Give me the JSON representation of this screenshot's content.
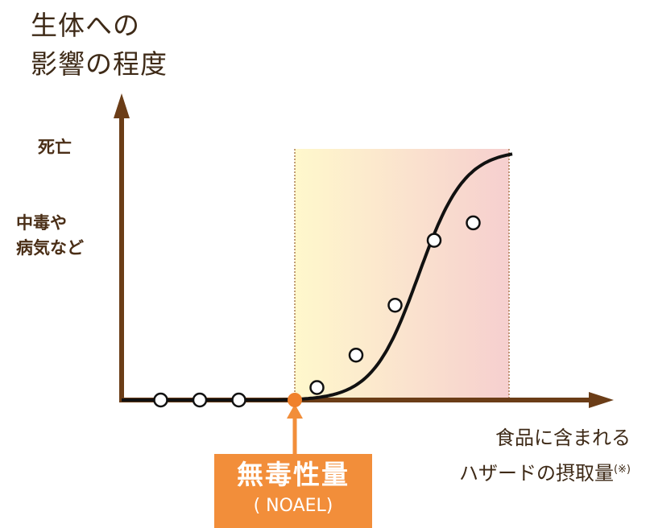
{
  "y_axis_label": [
    "生体への",
    "影響の程度"
  ],
  "levels": {
    "death": "死亡",
    "poisoning": [
      "中毒や",
      "病気など"
    ]
  },
  "x_axis_label": {
    "line1": "食品に含まれる",
    "line2": "ハザードの摂取量",
    "note": "(※)"
  },
  "noael": {
    "title": "無毒性量",
    "abbr": "( NOAEL)"
  },
  "colors": {
    "axis": "#6b3d17",
    "curve": "#111111",
    "noael_point": "#f0812c",
    "noael_box": "#f28e3a",
    "shade_start": "#fff8cc",
    "shade_end": "#f6cfcf"
  },
  "chart_data": {
    "type": "scatter",
    "points": [
      {
        "x": 1,
        "y": 0
      },
      {
        "x": 2,
        "y": 0
      },
      {
        "x": 3,
        "y": 0
      },
      {
        "x": 5,
        "y": 0.05
      },
      {
        "x": 6,
        "y": 0.18
      },
      {
        "x": 7,
        "y": 0.38
      },
      {
        "x": 8,
        "y": 0.64
      },
      {
        "x": 9,
        "y": 0.71
      }
    ],
    "noael_x": 4,
    "curve": "sigmoid dose-response",
    "xlim": [
      0,
      10
    ],
    "ylim": [
      0,
      1
    ]
  }
}
